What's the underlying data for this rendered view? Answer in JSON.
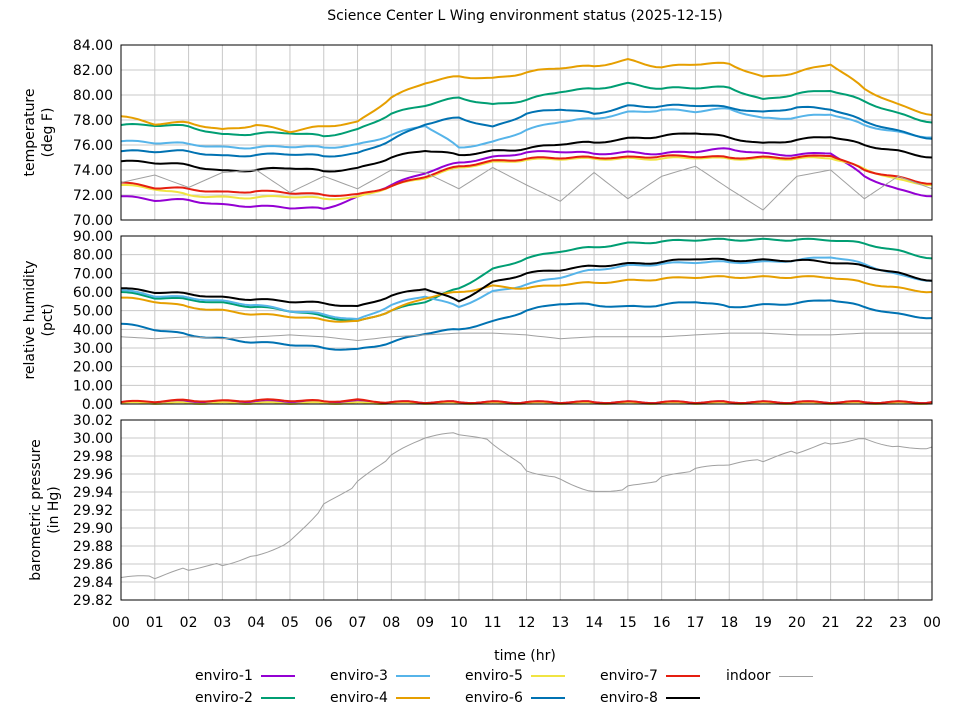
{
  "chart_data": [
    {
      "type": "line",
      "title": "Science Center L Wing environment status (2025-12-15)",
      "ylabel": [
        "temperature",
        "(deg F)"
      ],
      "ylim": [
        70,
        84
      ],
      "yticks": [
        "70.00",
        "72.00",
        "74.00",
        "76.00",
        "78.00",
        "80.00",
        "82.00",
        "84.00"
      ],
      "series": [
        {
          "name": "enviro-1",
          "values": [
            71.9,
            71.6,
            71.6,
            71.2,
            71.1,
            71.0,
            70.9,
            71.8,
            72.8,
            73.8,
            74.6,
            75.0,
            75.4,
            75.5,
            75.3,
            75.4,
            75.3,
            75.5,
            75.7,
            75.3,
            75.2,
            75.4,
            73.5,
            72.4,
            71.9
          ]
        },
        {
          "name": "enviro-2",
          "values": [
            77.6,
            77.6,
            77.5,
            76.8,
            76.9,
            77.0,
            76.7,
            77.2,
            78.5,
            79.2,
            79.8,
            79.2,
            79.6,
            80.3,
            80.5,
            80.9,
            80.5,
            80.6,
            80.6,
            79.6,
            80.1,
            80.4,
            79.5,
            78.5,
            77.8
          ]
        },
        {
          "name": "enviro-3",
          "values": [
            76.3,
            76.2,
            76.1,
            75.8,
            75.8,
            75.9,
            75.8,
            76.0,
            76.8,
            77.6,
            75.8,
            76.2,
            77.2,
            77.9,
            78.1,
            78.6,
            78.8,
            78.7,
            78.9,
            78.1,
            78.2,
            78.5,
            77.6,
            77.0,
            76.6
          ]
        },
        {
          "name": "enviro-4",
          "values": [
            78.3,
            77.7,
            77.8,
            77.2,
            77.6,
            77.1,
            77.5,
            77.8,
            79.8,
            81.0,
            81.5,
            81.3,
            81.8,
            82.2,
            82.3,
            82.8,
            82.2,
            82.5,
            82.5,
            81.4,
            81.8,
            82.5,
            80.5,
            79.2,
            78.4
          ]
        },
        {
          "name": "enviro-5",
          "values": [
            72.8,
            72.5,
            72.0,
            71.8,
            71.8,
            71.9,
            71.7,
            71.8,
            72.7,
            73.4,
            74.2,
            74.6,
            74.8,
            74.9,
            74.9,
            74.9,
            74.9,
            75.0,
            74.9,
            74.9,
            74.9,
            75.0,
            74.1,
            73.2,
            72.8
          ]
        },
        {
          "name": "enviro-6",
          "values": [
            75.5,
            75.5,
            75.5,
            75.1,
            75.2,
            75.3,
            75.1,
            75.3,
            76.4,
            77.7,
            78.2,
            77.4,
            78.5,
            78.9,
            78.5,
            79.1,
            79.1,
            79.2,
            79.0,
            78.6,
            79.0,
            78.9,
            77.9,
            77.1,
            76.5
          ]
        },
        {
          "name": "enviro-7",
          "values": [
            73.0,
            72.6,
            72.5,
            72.2,
            72.3,
            72.2,
            72.0,
            72.0,
            72.7,
            73.5,
            74.3,
            74.7,
            74.9,
            75.0,
            75.0,
            75.0,
            75.1,
            75.1,
            75.0,
            75.0,
            75.0,
            75.2,
            74.0,
            73.4,
            72.9
          ]
        },
        {
          "name": "enviro-8",
          "values": [
            74.7,
            74.6,
            74.4,
            73.9,
            74.0,
            74.2,
            73.9,
            74.1,
            75.0,
            75.6,
            75.2,
            75.5,
            75.7,
            76.1,
            76.2,
            76.5,
            76.7,
            77.0,
            76.6,
            76.1,
            76.4,
            76.7,
            76.0,
            75.5,
            75.0
          ]
        },
        {
          "name": "indoor",
          "values": [
            73.0,
            73.6,
            72.6,
            73.8,
            74.0,
            72.2,
            73.5,
            72.5,
            74.0,
            73.8,
            72.5,
            74.2,
            72.8,
            71.5,
            73.8,
            71.7,
            73.5,
            74.3,
            72.5,
            70.8,
            73.5,
            74.0,
            71.7,
            73.5,
            72.5
          ]
        }
      ]
    },
    {
      "type": "line",
      "ylabel": [
        "relative humidity",
        "(pct)"
      ],
      "ylim": [
        0,
        90
      ],
      "yticks": [
        "0.00",
        "10.00",
        "20.00",
        "30.00",
        "40.00",
        "50.00",
        "60.00",
        "70.00",
        "80.00",
        "90.00"
      ],
      "series": [
        {
          "name": "enviro-1",
          "values": [
            1,
            1,
            1,
            1,
            1,
            1,
            1,
            1,
            1,
            1,
            1,
            1,
            1,
            1,
            1,
            1,
            1,
            1,
            1,
            1,
            1,
            1,
            1,
            1,
            1
          ]
        },
        {
          "name": "enviro-2",
          "values": [
            60,
            57,
            56,
            54,
            52,
            50,
            47,
            44,
            50,
            55,
            62,
            72,
            78,
            82,
            84,
            86,
            87,
            88,
            88,
            88,
            88,
            88,
            86,
            82,
            78
          ]
        },
        {
          "name": "enviro-3",
          "values": [
            61,
            58,
            57,
            55,
            53,
            50,
            48,
            45,
            53,
            58,
            52,
            60,
            64,
            68,
            72,
            74,
            75,
            76,
            76,
            76,
            77,
            79,
            75,
            69,
            66
          ]
        },
        {
          "name": "enviro-4",
          "values": [
            57,
            55,
            52,
            50,
            48,
            47,
            45,
            44,
            50,
            57,
            60,
            63,
            62,
            64,
            65,
            66,
            67,
            68,
            68,
            68,
            68,
            68,
            65,
            62,
            60
          ]
        },
        {
          "name": "enviro-5",
          "values": [
            0.5,
            0.5,
            0.5,
            0.5,
            0.5,
            0.5,
            0.5,
            0.5,
            0.5,
            0.5,
            0.5,
            0.5,
            0.5,
            0.5,
            0.5,
            0.5,
            0.5,
            0.5,
            0.5,
            0.5,
            0.5,
            0.5,
            0.5,
            0.5,
            0.5
          ]
        },
        {
          "name": "enviro-6",
          "values": [
            43,
            40,
            37,
            35,
            33,
            32,
            30,
            29,
            33,
            38,
            40,
            44,
            50,
            54,
            53,
            52,
            53,
            55,
            52,
            53,
            54,
            56,
            52,
            48,
            46
          ]
        },
        {
          "name": "enviro-7",
          "values": [
            1,
            1.5,
            2,
            1.5,
            2,
            2,
            1.5,
            2,
            1,
            1,
            1,
            1,
            1,
            1,
            1,
            1,
            1,
            1,
            1,
            1,
            1,
            1,
            1,
            1,
            1
          ]
        },
        {
          "name": "enviro-8",
          "values": [
            62,
            60,
            59,
            57,
            56,
            55,
            54,
            52,
            58,
            62,
            55,
            65,
            70,
            72,
            74,
            75,
            76,
            78,
            77,
            77,
            77,
            76,
            74,
            70,
            66
          ]
        },
        {
          "name": "indoor",
          "values": [
            36,
            35,
            36,
            35,
            36,
            37,
            36,
            34,
            36,
            37,
            38,
            38,
            37,
            35,
            36,
            36,
            36,
            37,
            38,
            38,
            37,
            37,
            38,
            38,
            38
          ]
        }
      ]
    },
    {
      "type": "line",
      "ylabel": [
        "barometric pressure",
        "(in Hg)"
      ],
      "ylim": [
        29.82,
        30.02
      ],
      "yticks": [
        "29.82",
        "29.84",
        "29.86",
        "29.88",
        "29.90",
        "29.92",
        "29.94",
        "29.96",
        "29.98",
        "30.00",
        "30.02"
      ],
      "series": [
        {
          "name": "indoor",
          "values": [
            29.845,
            29.845,
            29.855,
            29.86,
            29.87,
            29.885,
            29.925,
            29.95,
            29.98,
            30.0,
            30.005,
            29.995,
            29.965,
            29.955,
            29.94,
            29.945,
            29.955,
            29.965,
            29.97,
            29.975,
            29.985,
            29.995,
            30.0,
            29.99,
            29.99
          ]
        }
      ]
    }
  ],
  "x": [
    0,
    1,
    2,
    3,
    4,
    5,
    6,
    7,
    8,
    9,
    10,
    11,
    12,
    13,
    14,
    15,
    16,
    17,
    18,
    19,
    20,
    21,
    22,
    23,
    24
  ],
  "xticks": [
    "00",
    "01",
    "02",
    "03",
    "04",
    "05",
    "06",
    "07",
    "08",
    "09",
    "10",
    "11",
    "12",
    "13",
    "14",
    "15",
    "16",
    "17",
    "18",
    "19",
    "20",
    "21",
    "22",
    "23",
    "00"
  ],
  "xlabel": "time (hr)",
  "title": "Science Center L Wing environment status (2025-12-15)",
  "colors": {
    "enviro-1": "#9400d3",
    "enviro-2": "#009e73",
    "enviro-3": "#56b4e9",
    "enviro-4": "#e69f00",
    "enviro-5": "#f0e442",
    "enviro-6": "#0072b2",
    "enviro-7": "#e51e10",
    "enviro-8": "#000000",
    "indoor": "#a0a0a0"
  },
  "legend": [
    "enviro-1",
    "enviro-2",
    "enviro-3",
    "enviro-4",
    "enviro-5",
    "enviro-6",
    "enviro-7",
    "enviro-8",
    "indoor"
  ]
}
